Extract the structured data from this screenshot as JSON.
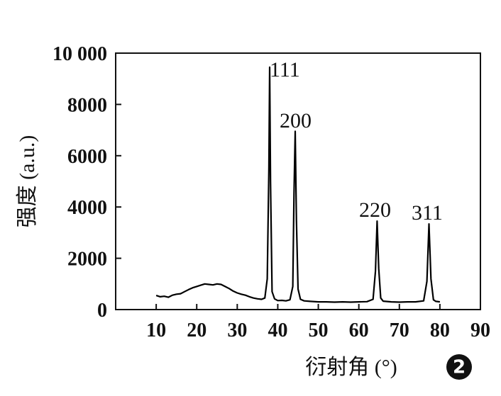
{
  "chart_data": {
    "type": "line",
    "x_label": "衍射角 (°)",
    "y_label": "强度 (a.u.)",
    "x": [
      10,
      11,
      12,
      13,
      14,
      15,
      16,
      17,
      18,
      19,
      20,
      21,
      22,
      23,
      24,
      25,
      26,
      27,
      28,
      29,
      30,
      31,
      32,
      33,
      34,
      35,
      36,
      36.8,
      37.4,
      37.8,
      38.0,
      38.2,
      38.6,
      39.2,
      40,
      41,
      42,
      43,
      43.7,
      44.0,
      44.3,
      44.6,
      45.0,
      45.6,
      46.5,
      48,
      50,
      52,
      54,
      56,
      58,
      60,
      62,
      63.5,
      64.1,
      64.5,
      64.9,
      65.4,
      66,
      68,
      70,
      72,
      74,
      76,
      76.8,
      77.3,
      77.8,
      78.4,
      79,
      80
    ],
    "values": [
      550,
      500,
      520,
      480,
      560,
      600,
      620,
      700,
      780,
      850,
      900,
      950,
      1000,
      980,
      960,
      1000,
      980,
      900,
      820,
      720,
      650,
      600,
      560,
      500,
      450,
      420,
      400,
      450,
      1200,
      5500,
      9450,
      5000,
      700,
      420,
      350,
      360,
      340,
      380,
      900,
      4500,
      6950,
      3500,
      800,
      400,
      340,
      320,
      300,
      300,
      290,
      300,
      290,
      300,
      310,
      400,
      1500,
      3450,
      1600,
      450,
      330,
      300,
      290,
      300,
      300,
      340,
      1100,
      3340,
      1200,
      380,
      320,
      300
    ],
    "color": "#000000",
    "xlim": [
      0,
      90
    ],
    "ylim": [
      0,
      10000
    ],
    "xticks": [
      10,
      20,
      30,
      40,
      50,
      60,
      70,
      80,
      90
    ],
    "yticks": [
      0,
      2000,
      4000,
      6000,
      8000,
      {
        "value": 10000,
        "label": "10 000"
      }
    ],
    "annotations": [
      "111",
      "200",
      "220",
      "311"
    ],
    "panel_label": "2"
  }
}
